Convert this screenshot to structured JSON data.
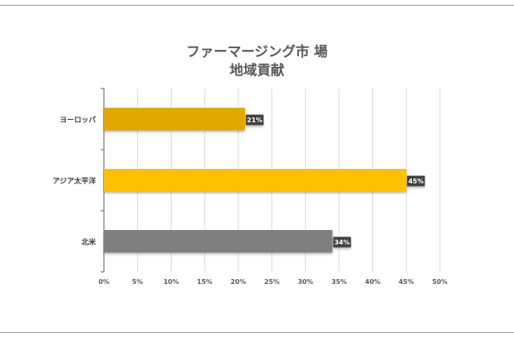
{
  "chart_data": {
    "type": "bar",
    "orientation": "horizontal",
    "title_lines": [
      "ファーマージング市 場",
      "地域貢献"
    ],
    "categories": [
      "ヨーロッパ",
      "アジア太平洋",
      "北米"
    ],
    "values": [
      21,
      45,
      34
    ],
    "data_labels": [
      "21%",
      "45%",
      "34%"
    ],
    "bar_colors": [
      "#E0A800",
      "#FFC000",
      "#7F7F7F"
    ],
    "xlim": [
      0,
      50
    ],
    "xticks": [
      0,
      5,
      10,
      15,
      20,
      25,
      30,
      35,
      40,
      45,
      50
    ],
    "xtick_labels": [
      "0%",
      "5%",
      "10%",
      "15%",
      "20%",
      "25%",
      "30%",
      "35%",
      "40%",
      "45%",
      "50%"
    ],
    "grid": true,
    "legend": "none"
  }
}
